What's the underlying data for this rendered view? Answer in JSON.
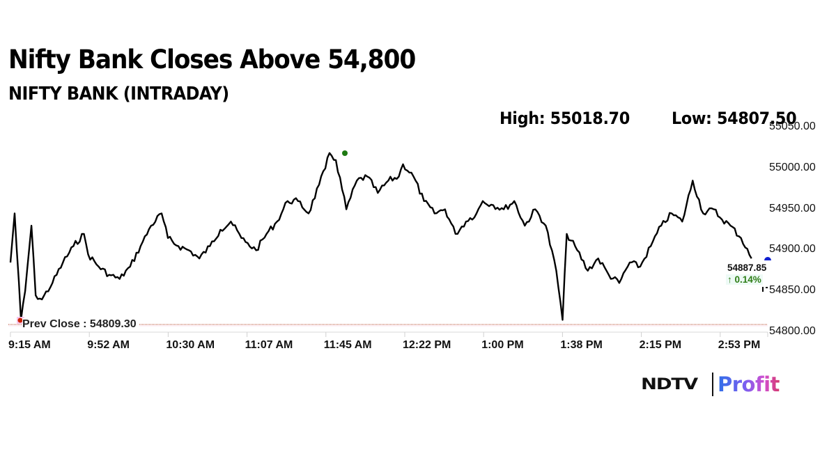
{
  "header": {
    "title": "Nifty Bank Closes Above 54,800",
    "subtitle": "NIFTY BANK (INTRADAY)",
    "high_label": "High: 55018.70",
    "low_label": "Low: 54807.50"
  },
  "chart_data": {
    "type": "line",
    "title": "Nifty Bank Closes Above 54,800",
    "subtitle": "NIFTY BANK (INTRADAY)",
    "xlabel": "",
    "ylabel": "",
    "ylim": [
      54800,
      55050
    ],
    "yticks": [
      "55050.00",
      "55000.00",
      "54950.00",
      "54900.00",
      "54850.00",
      "54800.00"
    ],
    "xticks": [
      "9:15 AM",
      "9:52 AM",
      "10:30 AM",
      "11:07 AM",
      "11:45 AM",
      "12:22 PM",
      "1:00 PM",
      "1:38 PM",
      "2:15 PM",
      "2:53 PM"
    ],
    "grid": false,
    "legend": "none",
    "high": 55018.7,
    "low": 54807.5,
    "prev_close": 54809.3,
    "prev_close_label": "Prev Close : 54809.30",
    "last_value": "54887.85",
    "last_change": "↑ 0.14%",
    "series": [
      {
        "name": "NIFTY BANK",
        "x": [
          "9:15",
          "9:17",
          "9:20",
          "9:22",
          "9:25",
          "9:27",
          "9:30",
          "9:35",
          "9:40",
          "9:45",
          "9:50",
          "9:52",
          "9:57",
          "10:02",
          "10:07",
          "10:12",
          "10:17",
          "10:22",
          "10:27",
          "10:30",
          "10:35",
          "10:40",
          "10:45",
          "10:50",
          "10:55",
          "11:00",
          "11:05",
          "11:07",
          "11:12",
          "11:17",
          "11:22",
          "11:27",
          "11:32",
          "11:37",
          "11:42",
          "11:45",
          "11:47",
          "11:50",
          "11:55",
          "12:00",
          "12:05",
          "12:10",
          "12:15",
          "12:20",
          "12:22",
          "12:27",
          "12:32",
          "12:37",
          "12:42",
          "12:47",
          "12:52",
          "12:57",
          "13:00",
          "13:05",
          "13:10",
          "13:15",
          "13:20",
          "13:25",
          "13:30",
          "13:35",
          "13:38",
          "13:40",
          "13:45",
          "13:50",
          "13:55",
          "14:00",
          "14:05",
          "14:10",
          "14:15",
          "14:20",
          "14:25",
          "14:30",
          "14:35",
          "14:40",
          "14:45",
          "14:50",
          "14:53",
          "14:58",
          "15:03",
          "15:08",
          "15:13",
          "15:18",
          "15:25",
          "15:30"
        ],
        "values": [
          54885,
          54945,
          54815,
          54850,
          54930,
          54845,
          54840,
          54860,
          54885,
          54905,
          54920,
          54895,
          54880,
          54870,
          54865,
          54880,
          54905,
          54930,
          54945,
          54915,
          54905,
          54900,
          54890,
          54905,
          54925,
          54935,
          54915,
          54910,
          54900,
          54920,
          54935,
          54960,
          54960,
          54945,
          54980,
          55000,
          55018.7,
          55010,
          54950,
          54985,
          54990,
          54970,
          54985,
          54990,
          55005,
          54990,
          54960,
          54945,
          54950,
          54920,
          54935,
          54945,
          54960,
          54955,
          54950,
          54960,
          54930,
          54950,
          54930,
          54875,
          54815,
          54920,
          54900,
          54875,
          54890,
          54870,
          54860,
          54885,
          54880,
          54905,
          54930,
          54945,
          54935,
          54985,
          54945,
          54950,
          54940,
          54930,
          54915,
          54890,
          54885,
          54890,
          54885,
          54887.85
        ]
      }
    ]
  },
  "overlay": {
    "high_marker_color": "#1e7a12",
    "low_marker_color": "#cc2200",
    "last_marker_color": "#1020d0",
    "prev_close_line_color": "#b04020",
    "up_color": "#2e7d16"
  },
  "branding": {
    "ndtv": "NDTV",
    "profit": "Profit"
  }
}
